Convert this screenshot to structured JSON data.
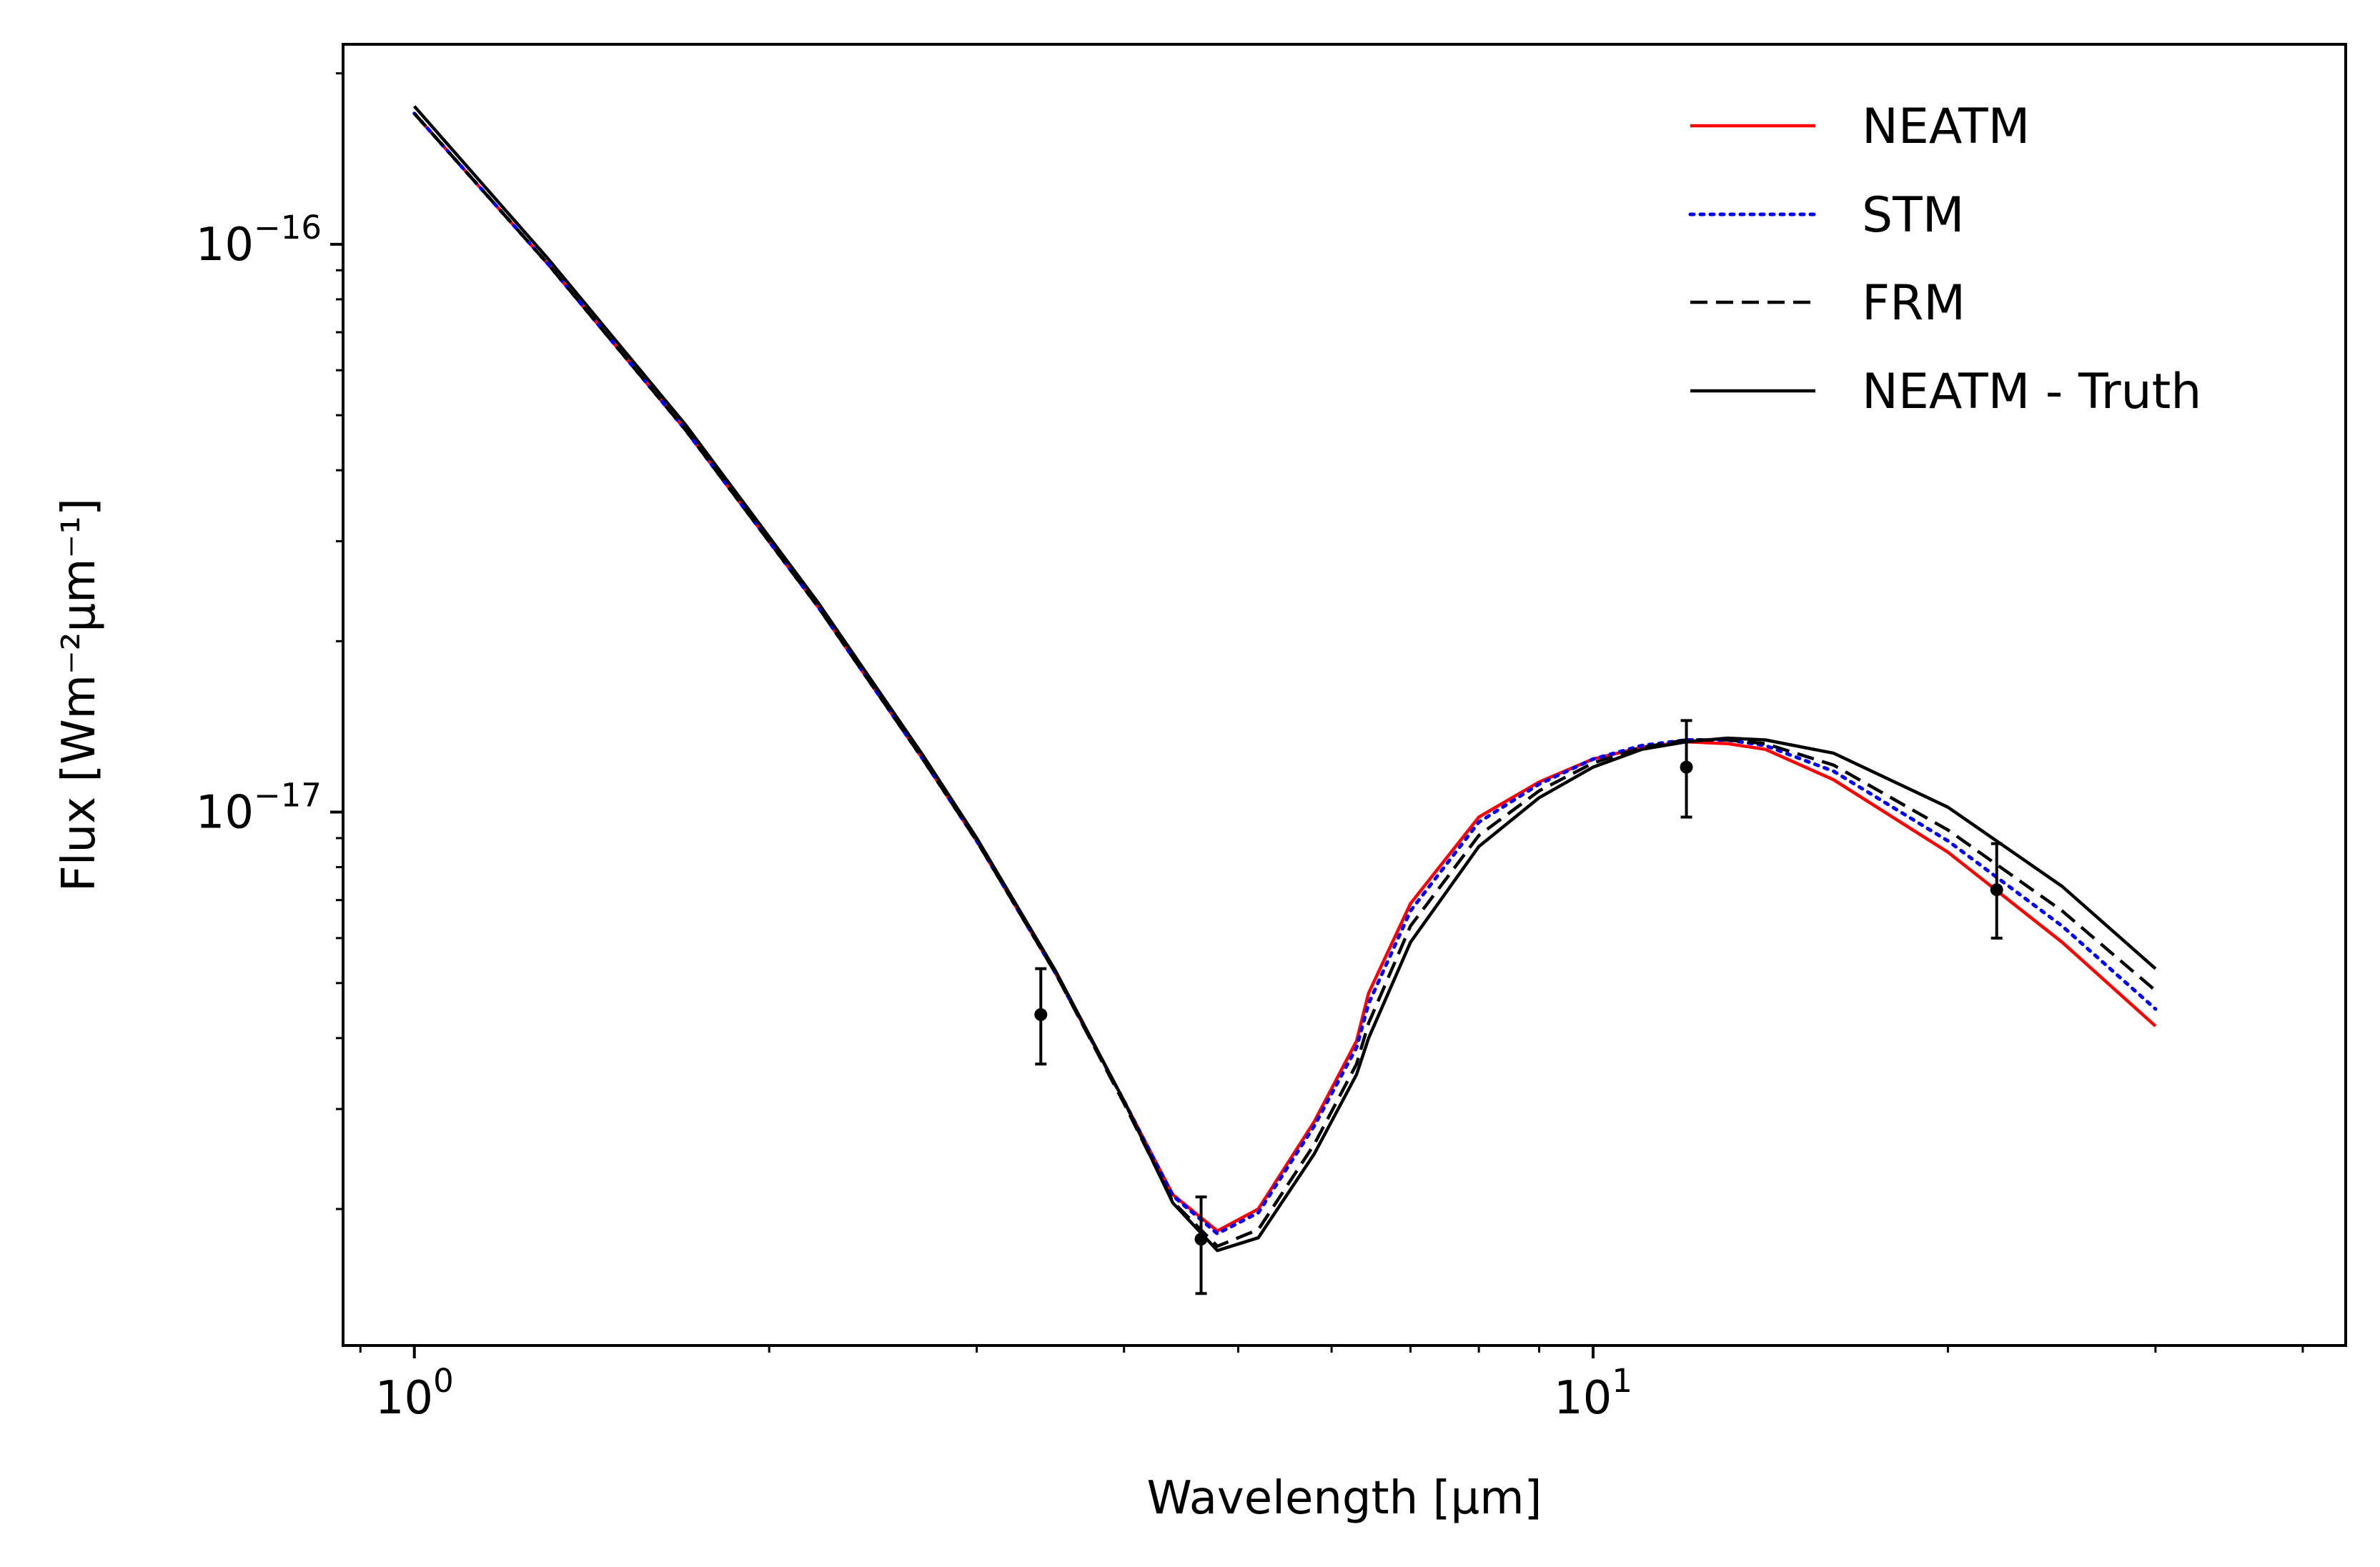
{
  "chart_data": {
    "type": "line",
    "title": "",
    "xlabel": "Wavelength [μm]",
    "ylabel": "Flux [Wm⁻²μm⁻¹]",
    "xscale": "log",
    "yscale": "log",
    "xlim": [
      0.87,
      43.5
    ],
    "ylim": [
      1.15e-18,
      2.25e-16
    ],
    "grid": false,
    "legend_position": "top-right",
    "x_major_ticks": [
      {
        "value": 1,
        "base": "10",
        "exp": "0"
      },
      {
        "value": 10,
        "base": "10",
        "exp": "1"
      }
    ],
    "y_major_ticks": [
      {
        "value": 1e-16,
        "base": "10",
        "exp": "−16"
      },
      {
        "value": 1e-17,
        "base": "10",
        "exp": "−17"
      }
    ],
    "series": [
      {
        "name": "NEATM",
        "color": "#ff0000",
        "style": "solid",
        "x": [
          1.0,
          1.3,
          1.7,
          2.2,
          2.7,
          3.0,
          3.5,
          4.0,
          4.4,
          4.8,
          5.2,
          5.8,
          6.3,
          6.45,
          7.0,
          8.0,
          9.0,
          10.0,
          11.0,
          12.0,
          13.0,
          14.0,
          16.0,
          20.0,
          25.0,
          30.0
        ],
        "y": [
          1.7e-16,
          9.2e-17,
          4.7e-17,
          2.3e-17,
          1.24e-17,
          8.9e-18,
          5.2e-18,
          3.1e-18,
          2.12e-18,
          1.83e-18,
          2e-18,
          2.85e-18,
          3.95e-18,
          4.8e-18,
          6.9e-18,
          9.8e-18,
          1.13e-17,
          1.24e-17,
          1.3e-17,
          1.33e-17,
          1.32e-17,
          1.29e-17,
          1.14e-17,
          8.5e-18,
          5.9e-18,
          4.2e-18
        ]
      },
      {
        "name": "STM",
        "color": "#0000ff",
        "style": "dotted",
        "x": [
          1.0,
          1.3,
          1.7,
          2.2,
          2.7,
          3.0,
          3.5,
          4.0,
          4.4,
          4.8,
          5.2,
          5.8,
          6.3,
          6.45,
          7.0,
          8.0,
          9.0,
          10.0,
          11.0,
          12.0,
          13.0,
          14.0,
          16.0,
          20.0,
          25.0,
          30.0
        ],
        "y": [
          1.7e-16,
          9.2e-17,
          4.7e-17,
          2.3e-17,
          1.24e-17,
          8.9e-18,
          5.2e-18,
          3.1e-18,
          2.11e-18,
          1.81e-18,
          1.97e-18,
          2.8e-18,
          3.85e-18,
          4.6e-18,
          6.7e-18,
          9.6e-18,
          1.12e-17,
          1.24e-17,
          1.31e-17,
          1.34e-17,
          1.34e-17,
          1.31e-17,
          1.18e-17,
          8.9e-18,
          6.3e-18,
          4.5e-18
        ]
      },
      {
        "name": "FRM",
        "color": "#000000",
        "style": "dashed",
        "x": [
          1.0,
          1.3,
          1.7,
          2.2,
          2.7,
          3.0,
          3.5,
          4.0,
          4.4,
          4.8,
          5.2,
          5.8,
          6.3,
          6.45,
          7.0,
          8.0,
          9.0,
          10.0,
          11.0,
          12.0,
          13.0,
          14.0,
          16.0,
          20.0,
          25.0,
          30.0
        ],
        "y": [
          1.7e-16,
          9.2e-17,
          4.7e-17,
          2.3e-17,
          1.24e-17,
          8.9e-18,
          5.2e-18,
          3.07e-18,
          2.06e-18,
          1.72e-18,
          1.84e-18,
          2.6e-18,
          3.6e-18,
          4.25e-18,
          6.3e-18,
          9.1e-18,
          1.09e-17,
          1.22e-17,
          1.3e-17,
          1.34e-17,
          1.34e-17,
          1.32e-17,
          1.21e-17,
          9.3e-18,
          6.7e-18,
          4.85e-18
        ]
      },
      {
        "name": "NEATM - Truth",
        "color": "#000000",
        "style": "solid",
        "x": [
          1.0,
          1.3,
          1.7,
          2.2,
          2.7,
          3.0,
          3.5,
          4.0,
          4.4,
          4.8,
          5.2,
          5.8,
          6.3,
          6.45,
          7.0,
          8.0,
          9.0,
          10.0,
          11.0,
          12.0,
          13.0,
          14.0,
          16.0,
          20.0,
          25.0,
          30.0
        ],
        "y": [
          1.75e-16,
          9.4e-17,
          4.8e-17,
          2.34e-17,
          1.26e-17,
          9e-18,
          5.25e-18,
          3.1e-18,
          2.05e-18,
          1.69e-18,
          1.78e-18,
          2.5e-18,
          3.45e-18,
          4e-18,
          5.9e-18,
          8.7e-18,
          1.06e-17,
          1.2e-17,
          1.29e-17,
          1.33e-17,
          1.35e-17,
          1.34e-17,
          1.27e-17,
          1.02e-17,
          7.4e-18,
          5.3e-18
        ]
      }
    ],
    "observations": {
      "x": [
        3.4,
        4.65,
        12.0,
        22.0
      ],
      "y": [
        4.4e-18,
        1.77e-18,
        1.2e-17,
        7.3e-18
      ],
      "yerr_low": [
        3.6e-18,
        1.42e-18,
        9.8e-18,
        6e-18
      ],
      "yerr_high": [
        5.3e-18,
        2.1e-18,
        1.45e-17,
        8.8e-18
      ]
    }
  }
}
